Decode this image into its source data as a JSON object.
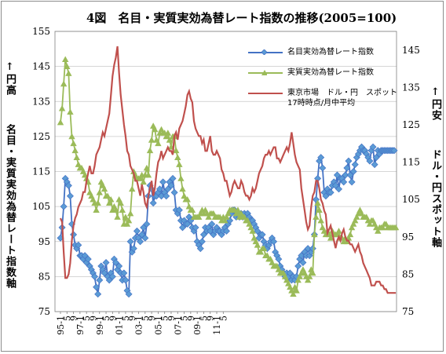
{
  "chart_data": {
    "type": "line",
    "title": "4図　名目・実質実効為替レート指数の推移(2005=100)",
    "left_axis": {
      "arrow_label": "↑円高",
      "label": "名目・実質実効為替レート指数軸",
      "ylim": [
        75,
        155
      ],
      "ticks": [
        "155",
        "145",
        "135",
        "125",
        "115",
        "105",
        "95",
        "85",
        "75"
      ]
    },
    "right_axis": {
      "arrow_label": "↑円安",
      "label": "ドル・円スポット軸",
      "ylim": [
        75,
        150
      ],
      "ticks": [
        "145",
        "135",
        "125",
        "115",
        "105",
        "95",
        "85",
        "75"
      ]
    },
    "x_tick_labels": [
      "95-1",
      "5",
      "9",
      "97-1",
      "5",
      "9",
      "99-1",
      "5",
      "9",
      "01-1",
      "5",
      "9",
      "03-1",
      "5",
      "9",
      "05-1",
      "5",
      "9",
      "07-1",
      "5",
      "9",
      "09-1",
      "5",
      "9",
      "11-1",
      "5"
    ],
    "x_start_index": 0,
    "x_count": 206,
    "grid": true,
    "legend_position": "top-right",
    "colors": {
      "nominal": "#4472c4",
      "nominal_marker": "#5b9bd5",
      "real": "#9bbb59",
      "spot": "#c0504d"
    },
    "series": [
      {
        "name": "名目実効為替レート指数",
        "axis": "left",
        "marker": "diamond",
        "values": [
          96,
          99,
          105,
          113,
          112,
          111,
          108,
          100,
          97,
          94,
          93,
          94,
          91,
          91,
          90,
          91,
          89,
          90,
          88,
          87,
          86,
          85,
          82,
          80,
          84,
          88,
          87,
          86,
          89,
          85,
          84,
          86,
          85,
          90,
          89,
          87,
          88,
          86,
          84,
          86,
          84,
          81,
          80,
          95,
          92,
          93,
          96,
          98,
          96,
          95,
          97,
          99,
          96,
          100,
          108,
          111,
          110,
          106,
          108,
          108,
          109,
          110,
          108,
          112,
          109,
          108,
          110,
          112,
          111,
          113,
          109,
          104,
          103,
          104,
          101,
          99,
          101,
          100,
          100,
          102,
          101,
          99,
          98,
          99,
          95,
          94,
          93,
          95,
          97,
          99,
          98,
          99,
          98,
          100,
          97,
          98,
          99,
          98,
          98,
          97,
          98,
          99,
          98,
          100,
          101,
          103,
          104,
          104,
          102,
          103,
          102,
          103,
          102,
          103,
          102,
          103,
          102,
          101,
          101,
          100,
          99,
          98,
          96,
          97,
          97,
          95,
          94,
          93,
          94,
          95,
          96,
          95,
          92,
          91,
          90,
          88,
          87,
          86,
          85,
          86,
          85,
          86,
          84,
          85,
          84,
          85,
          88,
          90,
          91,
          89,
          92,
          91,
          93,
          91,
          92,
          93,
          97,
          107,
          113,
          118,
          119,
          116,
          109,
          108,
          110,
          109,
          109,
          111,
          112,
          111,
          114,
          110,
          113,
          113,
          112,
          114,
          116,
          118,
          114,
          112,
          115,
          117,
          119,
          120,
          121,
          122,
          121,
          121,
          120,
          119,
          118,
          121,
          122,
          117,
          119,
          121,
          120,
          121,
          121,
          121,
          121,
          121,
          121,
          121,
          121,
          121
        ]
      },
      {
        "name": "実質実効為替レート指数",
        "axis": "left",
        "marker": "triangle",
        "values": [
          129,
          133,
          140,
          147,
          145,
          143,
          132,
          125,
          123,
          121,
          119,
          117,
          116,
          116,
          115,
          114,
          113,
          112,
          109,
          108,
          107,
          106,
          104,
          106,
          109,
          112,
          111,
          110,
          108,
          108,
          106,
          107,
          104,
          105,
          104,
          102,
          107,
          106,
          104,
          100,
          102,
          100,
          101,
          103,
          110,
          115,
          114,
          113,
          113,
          113,
          114,
          112,
          114,
          116,
          114,
          121,
          124,
          128,
          127,
          124,
          123,
          126,
          127,
          126,
          126,
          125,
          126,
          124,
          122,
          125,
          125,
          121,
          119,
          117,
          113,
          110,
          108,
          107,
          107,
          105,
          104,
          104,
          102,
          102,
          102,
          102,
          103,
          104,
          103,
          104,
          103,
          102,
          103,
          103,
          103,
          102,
          102,
          102,
          102,
          101,
          102,
          101,
          102,
          103,
          104,
          104,
          104,
          104,
          103,
          104,
          102,
          103,
          102,
          102,
          101,
          101,
          100,
          99,
          98,
          96,
          95,
          94,
          92,
          92,
          93,
          93,
          91,
          91,
          90,
          90,
          89,
          88,
          88,
          88,
          87,
          86,
          86,
          86,
          85,
          84,
          83,
          82,
          81,
          80,
          82,
          81,
          84,
          85,
          86,
          87,
          86,
          85,
          84,
          85,
          87,
          86,
          97,
          102,
          106,
          104,
          101,
          99,
          98,
          97,
          98,
          97,
          96,
          98,
          97,
          97,
          97,
          98,
          96,
          96,
          95,
          96,
          95,
          96,
          97,
          99,
          100,
          101,
          102,
          103,
          104,
          103,
          102,
          102,
          102,
          101,
          100,
          101,
          101,
          100,
          99,
          98,
          99,
          99,
          99,
          100,
          100,
          99,
          99,
          99,
          99,
          99,
          99
        ]
      },
      {
        "name": "東京市場　ドル・円　スポット",
        "name_line2": "17時時点/月中平均",
        "axis": "right",
        "marker": "none",
        "values": [
          100,
          99,
          91,
          84,
          84,
          85,
          88,
          94,
          98,
          100,
          101,
          103,
          104,
          105,
          107,
          107,
          110,
          112,
          114,
          112,
          112,
          114,
          117,
          118,
          119,
          121,
          123,
          122,
          124,
          126,
          128,
          133,
          138,
          141,
          143,
          146,
          139,
          133,
          129,
          125,
          122,
          118,
          117,
          114,
          113,
          112,
          110,
          110,
          108,
          106,
          109,
          107,
          104,
          103,
          106,
          108,
          110,
          106,
          108,
          112,
          115,
          116,
          118,
          116,
          117,
          118,
          119,
          118,
          118,
          117,
          122,
          123,
          121,
          124,
          125,
          126,
          128,
          130,
          133,
          134,
          132,
          131,
          126,
          124,
          123,
          122,
          122,
          120,
          121,
          118,
          118,
          120,
          122,
          118,
          117,
          117,
          118,
          117,
          116,
          113,
          112,
          110,
          110,
          108,
          106,
          107,
          109,
          110,
          109,
          108,
          108,
          110,
          109,
          107,
          106,
          106,
          105,
          106,
          108,
          107,
          108,
          110,
          112,
          113,
          114,
          116,
          117,
          117,
          118,
          117,
          118,
          119,
          119,
          116,
          116,
          115,
          116,
          117,
          118,
          119,
          118,
          120,
          123,
          120,
          117,
          115,
          114,
          113,
          108,
          105,
          102,
          99,
          97,
          98,
          103,
          106,
          107,
          110,
          110,
          108,
          105,
          104,
          102,
          101,
          96,
          97,
          98,
          96,
          94,
          92,
          94,
          95,
          94,
          96,
          97,
          95,
          94,
          94,
          93,
          93,
          92,
          91,
          92,
          93,
          91,
          90,
          88,
          87,
          86,
          85,
          84,
          82,
          82,
          82,
          83,
          83,
          83,
          82,
          82,
          81,
          81,
          80,
          80,
          80,
          80,
          80,
          80
        ]
      }
    ]
  }
}
